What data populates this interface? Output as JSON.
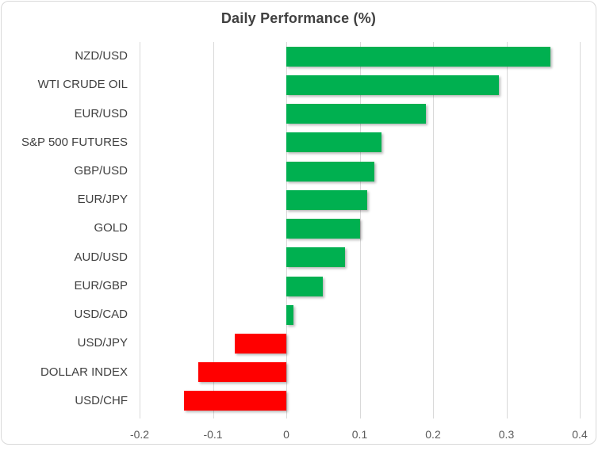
{
  "chart_data": {
    "type": "bar",
    "orientation": "horizontal",
    "title": "Daily Performance (%)",
    "categories": [
      "NZD/USD",
      "WTI CRUDE OIL",
      "EUR/USD",
      "S&P 500 FUTURES",
      "GBP/USD",
      "EUR/JPY",
      "GOLD",
      "AUD/USD",
      "EUR/GBP",
      "USD/CAD",
      "USD/JPY",
      "DOLLAR INDEX",
      "USD/CHF"
    ],
    "values": [
      0.36,
      0.29,
      0.19,
      0.13,
      0.12,
      0.11,
      0.1,
      0.08,
      0.05,
      0.01,
      -0.07,
      -0.12,
      -0.14
    ],
    "xlim": [
      -0.2,
      0.4
    ],
    "x_ticks": [
      -0.2,
      -0.1,
      0,
      0.1,
      0.2,
      0.3,
      0.4
    ],
    "x_tick_labels": [
      "-0.2",
      "-0.1",
      "0",
      "0.1",
      "0.2",
      "0.3",
      "0.4"
    ],
    "grid": "vertical-on",
    "legend": "none",
    "colors": {
      "positive_bar": "#00B050",
      "negative_bar": "#FF0000",
      "gridline": "#D9D9D9",
      "title_text": "#404040",
      "category_text": "#404040",
      "axis_text": "#595959",
      "frame_border": "#D9D9D9",
      "background": "#FFFFFF"
    }
  }
}
